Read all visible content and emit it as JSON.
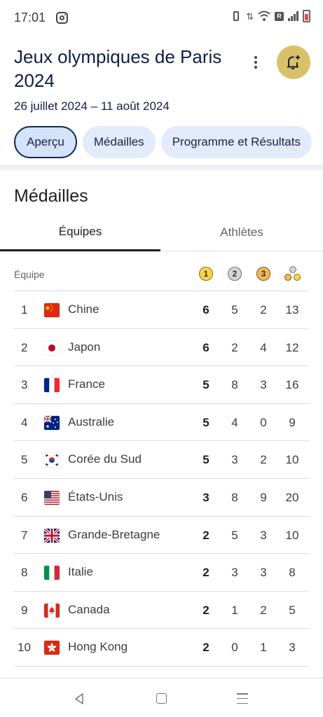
{
  "status_bar": {
    "time": "17:01",
    "network_badge": "R"
  },
  "header": {
    "title": "Jeux olympiques de Paris 2024",
    "dates": "26 juillet 2024 – 11 août 2024"
  },
  "chips": [
    {
      "label": "Aperçu",
      "active": true
    },
    {
      "label": "Médailles",
      "active": false
    },
    {
      "label": "Programme et Résultats",
      "active": false
    }
  ],
  "section": {
    "title": "Médailles"
  },
  "tabs": [
    {
      "label": "Équipes",
      "selected": true
    },
    {
      "label": "Athlètes",
      "selected": false
    }
  ],
  "table": {
    "header": {
      "team_label": "Équipe",
      "gold_icon_text": "1",
      "silver_icon_text": "2",
      "bronze_icon_text": "3"
    },
    "rows": [
      {
        "rank": "1",
        "country": "Chine",
        "flag": "china-flag",
        "gold": "6",
        "silver": "5",
        "bronze": "2",
        "total": "13"
      },
      {
        "rank": "2",
        "country": "Japon",
        "flag": "japan-flag",
        "gold": "6",
        "silver": "2",
        "bronze": "4",
        "total": "12"
      },
      {
        "rank": "3",
        "country": "France",
        "flag": "france-flag",
        "gold": "5",
        "silver": "8",
        "bronze": "3",
        "total": "16"
      },
      {
        "rank": "4",
        "country": "Australie",
        "flag": "australia-flag",
        "gold": "5",
        "silver": "4",
        "bronze": "0",
        "total": "9"
      },
      {
        "rank": "5",
        "country": "Corée du Sud",
        "flag": "south-korea-flag",
        "gold": "5",
        "silver": "3",
        "bronze": "2",
        "total": "10"
      },
      {
        "rank": "6",
        "country": "États-Unis",
        "flag": "usa-flag",
        "gold": "3",
        "silver": "8",
        "bronze": "9",
        "total": "20"
      },
      {
        "rank": "7",
        "country": "Grande-Bretagne",
        "flag": "uk-flag",
        "gold": "2",
        "silver": "5",
        "bronze": "3",
        "total": "10"
      },
      {
        "rank": "8",
        "country": "Italie",
        "flag": "italy-flag",
        "gold": "2",
        "silver": "3",
        "bronze": "3",
        "total": "8"
      },
      {
        "rank": "9",
        "country": "Canada",
        "flag": "canada-flag",
        "gold": "2",
        "silver": "1",
        "bronze": "2",
        "total": "5"
      },
      {
        "rank": "10",
        "country": "Hong Kong",
        "flag": "hong-kong-flag",
        "gold": "2",
        "silver": "0",
        "bronze": "1",
        "total": "3"
      }
    ]
  },
  "colors": {
    "title": "#0f1e45",
    "chip_bg": "#e3ebfb",
    "chip_active_border": "#132a55",
    "bell_bg": "#d8c169",
    "gold": "#f6d54c",
    "silver": "#d4d4d4",
    "bronze": "#f1b75d"
  },
  "icons": {
    "more": "more-vert-icon",
    "bell": "bell-add-icon",
    "nav_back": "back-triangle-icon",
    "nav_home": "home-square-icon",
    "nav_recents": "menu-lines-icon"
  }
}
